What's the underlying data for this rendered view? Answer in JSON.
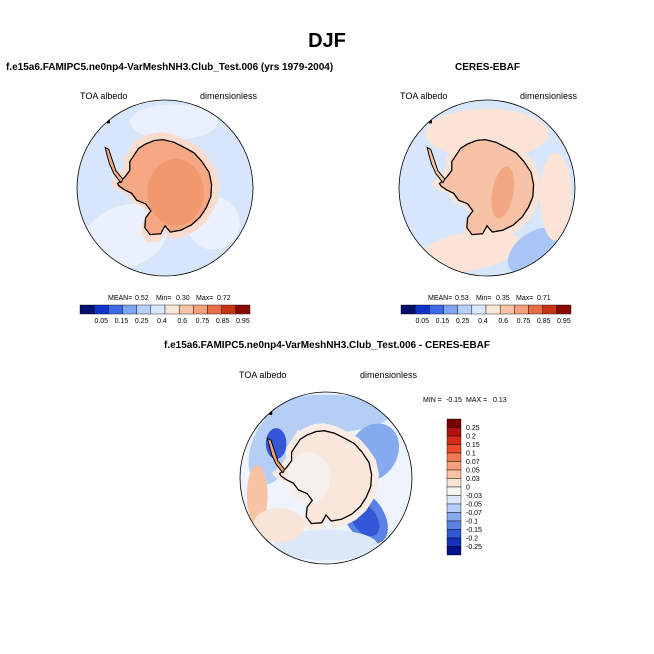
{
  "page": {
    "title": "DJF"
  },
  "panels": {
    "model": {
      "title": "f.e15a6.FAMIPC5.ne0np4-VarMeshNH3.Club_Test.006 (yrs 1979-2004)",
      "left_label": "TOA albedo",
      "right_label": "dimensionless",
      "stats": {
        "mean_label": "MEAN=",
        "mean": "0.52",
        "min_label": "Min=",
        "min": "0.30",
        "max_label": "Max=",
        "max": "0.72"
      }
    },
    "obs": {
      "title": "CERES-EBAF",
      "left_label": "TOA albedo",
      "right_label": "dimensionless",
      "stats": {
        "mean_label": "MEAN=",
        "mean": "0.53",
        "min_label": "Min=",
        "min": "0.35",
        "max_label": "Max=",
        "max": "0.71"
      }
    },
    "diff": {
      "title": "f.e15a6.FAMIPC5.ne0np4-VarMeshNH3.Club_Test.006 - CERES-EBAF",
      "left_label": "TOA albedo",
      "right_label": "dimensionless",
      "stats": {
        "min_label": "MIN =",
        "min": "-0.15",
        "max_label": "MAX =",
        "max": "0.13"
      }
    }
  },
  "chart_data": [
    {
      "type": "heatmap",
      "title": "f.e15a6.FAMIPC5.ne0np4-VarMeshNH3.Club_Test.006 (yrs 1979-2004)",
      "variable": "TOA albedo",
      "units": "dimensionless",
      "projection": "polar stereographic (south pole)",
      "mean": 0.52,
      "min": 0.3,
      "max": 0.72,
      "levels": [
        "0.05",
        "0.15",
        "0.25",
        "0.4",
        "0.6",
        "0.75",
        "0.85",
        "0.95"
      ],
      "colors": [
        "#05106e",
        "#1034c8",
        "#3a6ae8",
        "#7ea4f4",
        "#b6d0fa",
        "#dbe8fc",
        "#fbe6da",
        "#f8c4a8",
        "#f4a07c",
        "#e86c46",
        "#c83418",
        "#8a0a04"
      ]
    },
    {
      "type": "heatmap",
      "title": "CERES-EBAF",
      "variable": "TOA albedo",
      "units": "dimensionless",
      "projection": "polar stereographic (south pole)",
      "mean": 0.53,
      "min": 0.35,
      "max": 0.71,
      "levels": [
        "0.05",
        "0.15",
        "0.25",
        "0.4",
        "0.6",
        "0.75",
        "0.85",
        "0.95"
      ],
      "colors": [
        "#05106e",
        "#1034c8",
        "#3a6ae8",
        "#7ea4f4",
        "#b6d0fa",
        "#dbe8fc",
        "#fbe6da",
        "#f8c4a8",
        "#f4a07c",
        "#e86c46",
        "#c83418",
        "#8a0a04"
      ]
    },
    {
      "type": "heatmap",
      "title": "f.e15a6.FAMIPC5.ne0np4-VarMeshNH3.Club_Test.006 - CERES-EBAF",
      "variable": "TOA albedo",
      "units": "dimensionless",
      "projection": "polar stereographic (south pole)",
      "min": -0.15,
      "max": 0.13,
      "levels": [
        "0.25",
        "0.2",
        "0.15",
        "0.1",
        "0.07",
        "0.05",
        "0.03",
        "0",
        "-0.03",
        "-0.05",
        "-0.07",
        "-0.1",
        "-0.15",
        "-0.2",
        "-0.25"
      ],
      "colors": [
        "#7a0000",
        "#b01010",
        "#d42a1a",
        "#ec4a2a",
        "#f27850",
        "#f7a07e",
        "#f8c2a4",
        "#fbe4d4",
        "#f6f4f0",
        "#dce8fa",
        "#b4cef6",
        "#86aaee",
        "#5a82e4",
        "#3258d8",
        "#1430b8",
        "#04108c"
      ]
    }
  ]
}
